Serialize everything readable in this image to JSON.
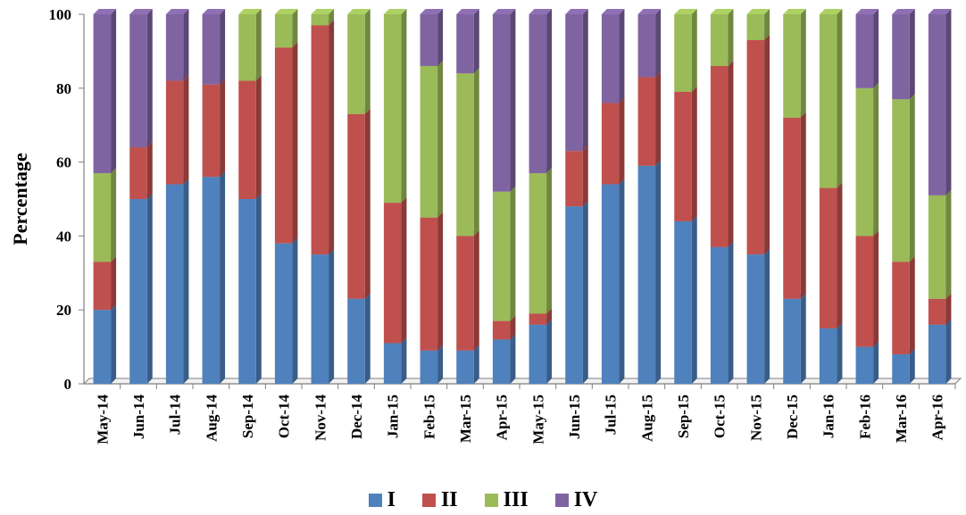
{
  "chart_data": {
    "type": "bar",
    "stacked": true,
    "three_d": true,
    "ylabel": "Percentage",
    "xlabel": "",
    "ylim": [
      0,
      100
    ],
    "yticks": [
      0,
      20,
      40,
      60,
      80,
      100
    ],
    "legend_position": "bottom",
    "categories": [
      "May-14",
      "Jun-14",
      "Jul-14",
      "Aug-14",
      "Sep-14",
      "Oct-14",
      "Nov-14",
      "Dec-14",
      "Jan-15",
      "Feb-15",
      "Mar-15",
      "Apr-15",
      "May-15",
      "Jun-15",
      "Jul-15",
      "Aug-15",
      "Sep-15",
      "Oct-15",
      "Nov-15",
      "Dec-15",
      "Jan-16",
      "Feb-16",
      "Mar-16",
      "Apr-16"
    ],
    "series": [
      {
        "name": "I",
        "color": "#4f81bd",
        "values": [
          20,
          50,
          54,
          56,
          50,
          38,
          35,
          23,
          11,
          9,
          9,
          12,
          16,
          48,
          54,
          59,
          44,
          37,
          35,
          23,
          15,
          10,
          8,
          16
        ]
      },
      {
        "name": "II",
        "color": "#c0504d",
        "values": [
          13,
          14,
          28,
          25,
          32,
          53,
          62,
          50,
          38,
          36,
          31,
          5,
          3,
          15,
          22,
          24,
          35,
          49,
          58,
          49,
          38,
          30,
          25,
          7
        ]
      },
      {
        "name": "III",
        "color": "#9bbb59",
        "values": [
          24,
          0,
          0,
          0,
          18,
          9,
          3,
          27,
          51,
          41,
          44,
          35,
          38,
          0,
          0,
          0,
          21,
          14,
          7,
          28,
          47,
          40,
          44,
          28
        ]
      },
      {
        "name": "IV",
        "color": "#8064a2",
        "values": [
          43,
          36,
          18,
          19,
          0,
          0,
          0,
          0,
          0,
          14,
          16,
          48,
          43,
          37,
          24,
          17,
          0,
          0,
          0,
          0,
          0,
          20,
          23,
          49
        ]
      }
    ]
  }
}
